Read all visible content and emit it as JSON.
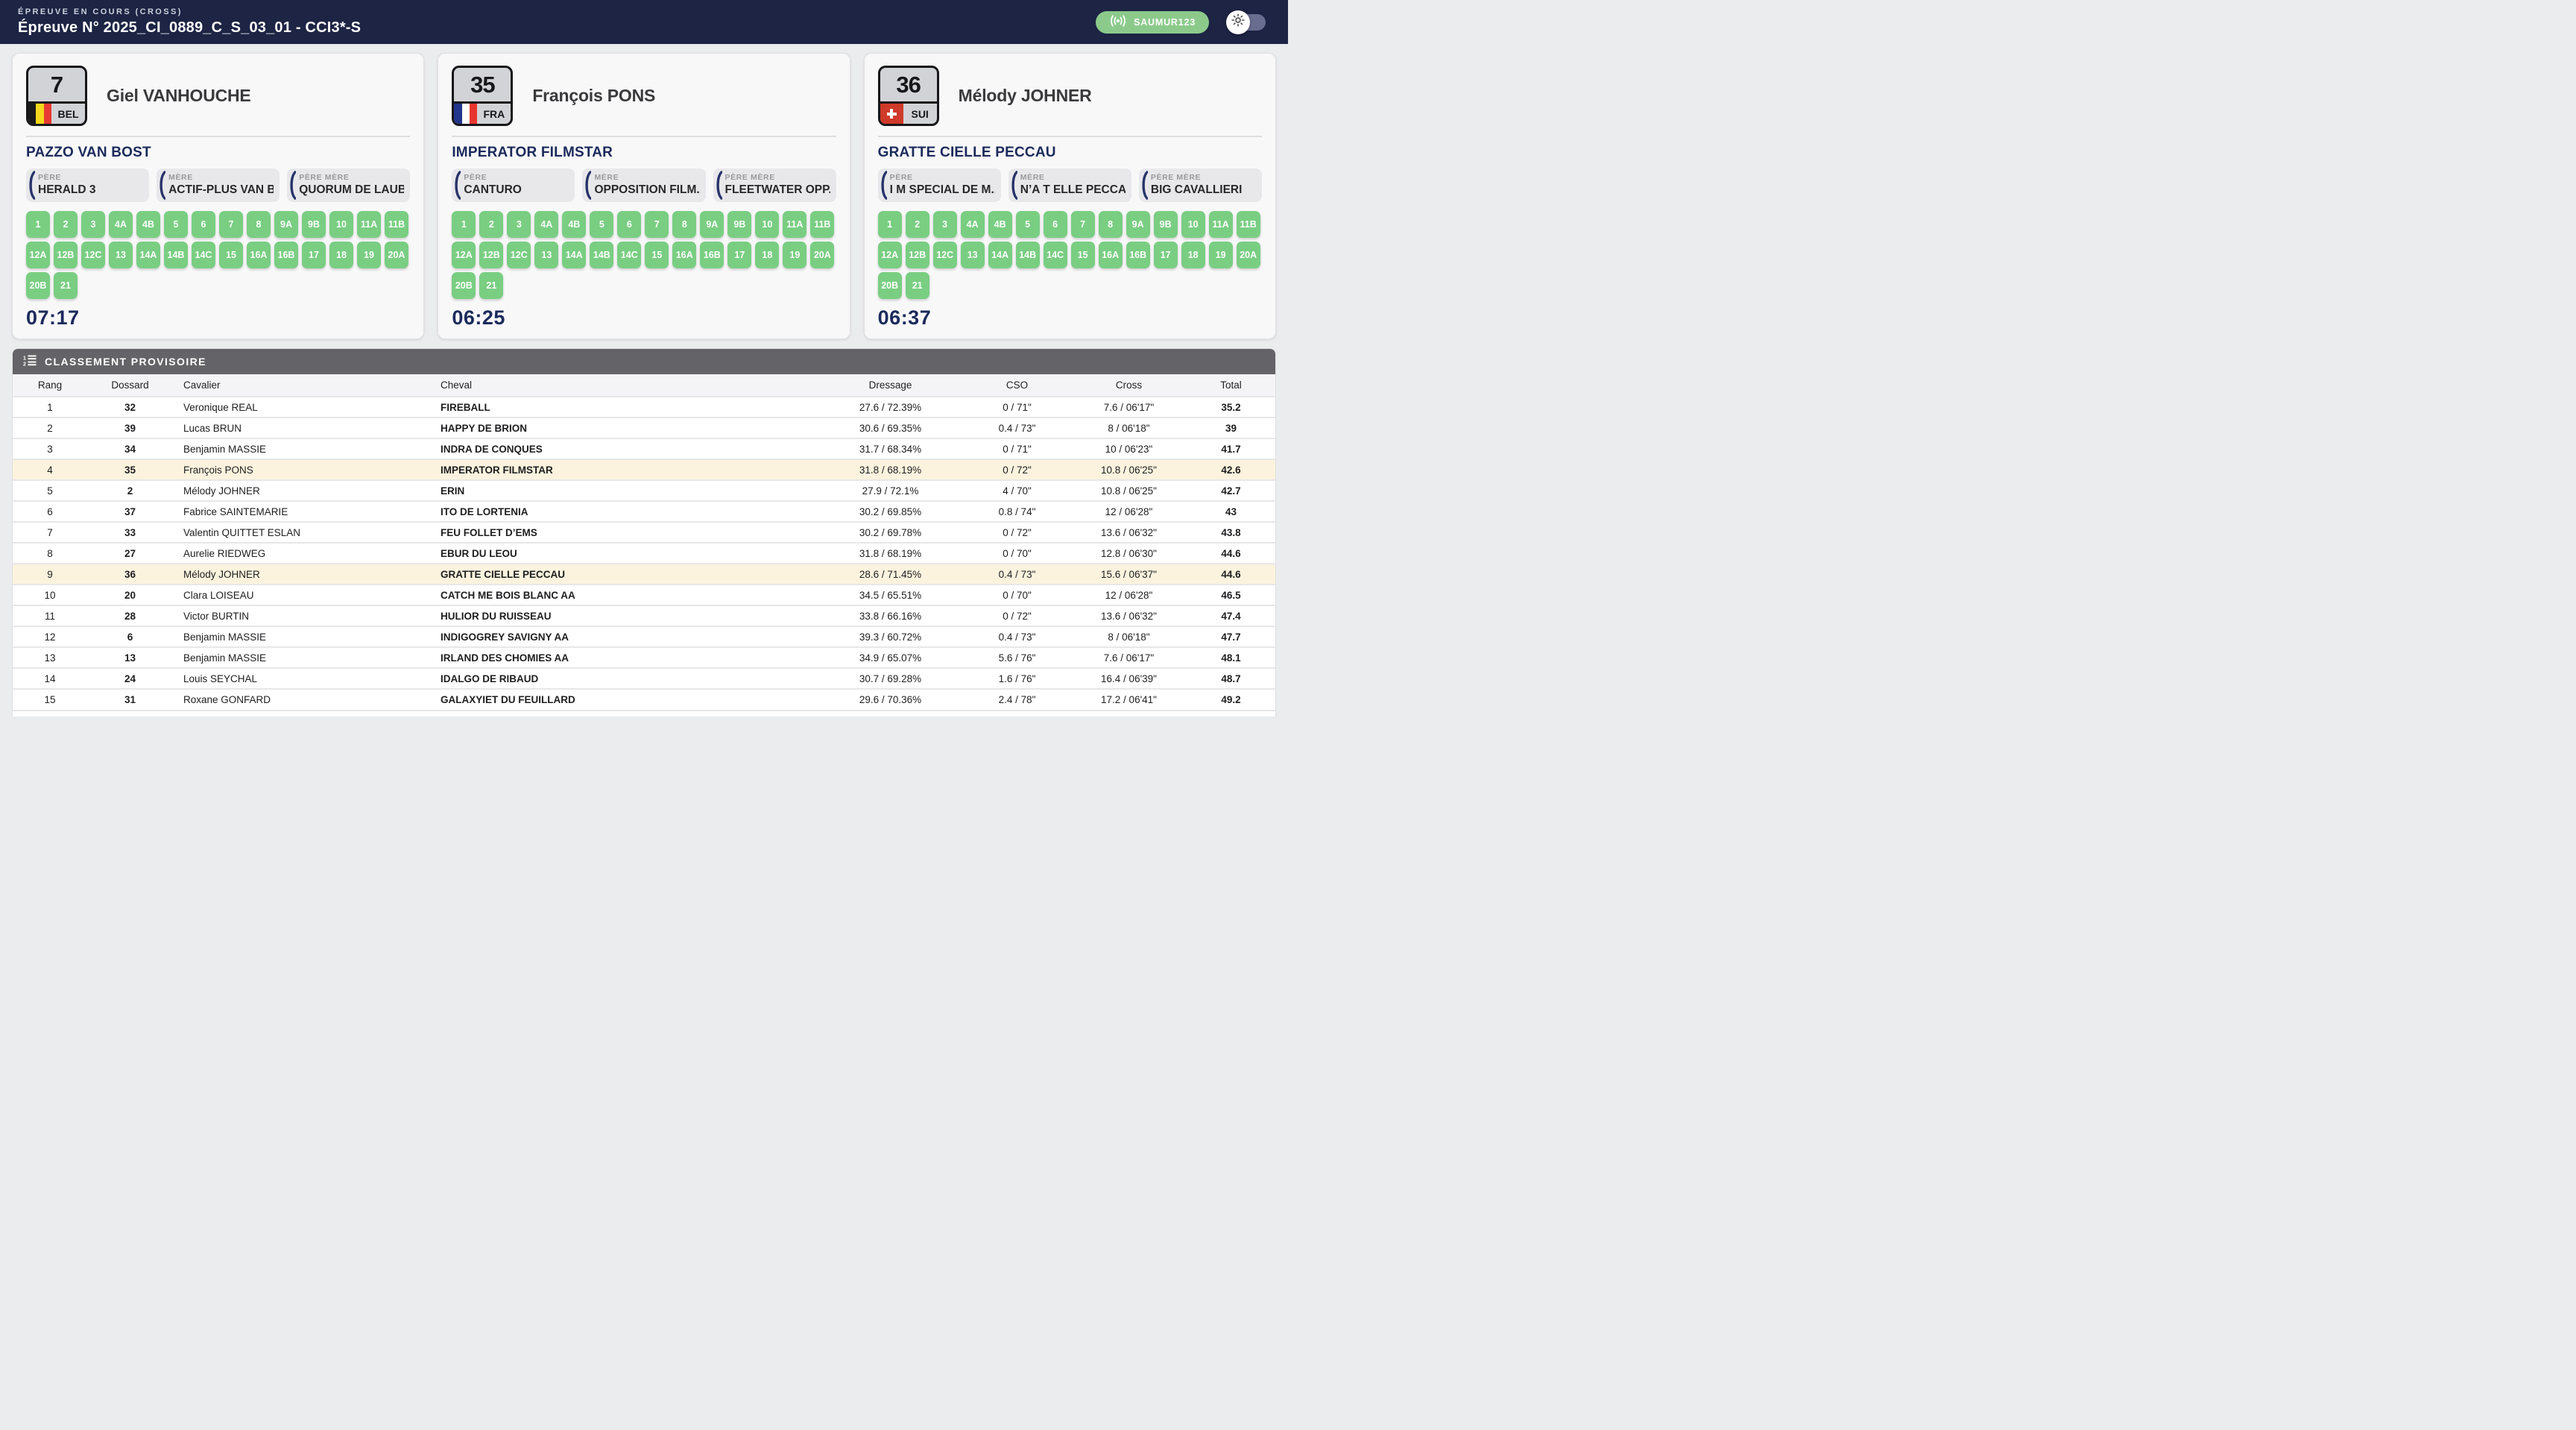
{
  "header": {
    "supertitle": "ÉPREUVE EN COURS (CROSS)",
    "title": "Épreuve N° 2025_CI_0889_C_S_03_01 - CCI3*-S",
    "badge": {
      "label": "SAUMUR123",
      "icon": "broadcast-icon"
    },
    "theme_toggle": {
      "state": "light",
      "icon": "sun-icon"
    }
  },
  "colors": {
    "header_navy": "#1d2444",
    "accent_navy": "#1b2a5b",
    "checkpoint_green": "#79ce82",
    "badge_green": "#8cca8b",
    "section_gray": "#646468",
    "highlight_row": "#fbf3de"
  },
  "checkpoints": [
    "1",
    "2",
    "3",
    "4A",
    "4B",
    "5",
    "6",
    "7",
    "8",
    "9A",
    "9B",
    "10",
    "11A",
    "11B",
    "12A",
    "12B",
    "12C",
    "13",
    "14A",
    "14B",
    "14C",
    "15",
    "16A",
    "16B",
    "17",
    "18",
    "19",
    "20A",
    "20B",
    "21"
  ],
  "flags": {
    "BEL": {
      "type": "vstripes",
      "colors": [
        "#1a1a1a",
        "#f5d81c",
        "#e83a32"
      ]
    },
    "FRA": {
      "type": "vstripes",
      "colors": [
        "#21368c",
        "#ffffff",
        "#e8362f"
      ]
    },
    "SUI": {
      "type": "swiss",
      "bg": "#cf3a2a",
      "cross": "#ffffff"
    }
  },
  "cards": [
    {
      "bib": "7",
      "country": "BEL",
      "rider": "Giel VANHOUCHE",
      "horse": "PAZZO VAN BOST",
      "pedigree": [
        {
          "label": "PÈRE",
          "value": "HERALD 3"
        },
        {
          "label": "MÈRE",
          "value": "ACTIF-PLUS VAN B..."
        },
        {
          "label": "PÈRE MÈRE",
          "value": "QUORUM DE LAUB..."
        }
      ],
      "time": "07:17"
    },
    {
      "bib": "35",
      "country": "FRA",
      "rider": "François PONS",
      "horse": "IMPERATOR FILMSTAR",
      "pedigree": [
        {
          "label": "PÈRE",
          "value": "CANTURO"
        },
        {
          "label": "MÈRE",
          "value": "OPPOSITION FILM..."
        },
        {
          "label": "PÈRE MÈRE",
          "value": "FLEETWATER OPP..."
        }
      ],
      "time": "06:25"
    },
    {
      "bib": "36",
      "country": "SUI",
      "rider": "Mélody JOHNER",
      "horse": "GRATTE CIELLE PECCAU",
      "pedigree": [
        {
          "label": "PÈRE",
          "value": "I M SPECIAL DE M..."
        },
        {
          "label": "MÈRE",
          "value": "N’A T ELLE PECCAU"
        },
        {
          "label": "PÈRE MÈRE",
          "value": "BIG CAVALLIERI"
        }
      ],
      "time": "06:37"
    }
  ],
  "table": {
    "section_title": "CLASSEMENT PROVISOIRE",
    "columns": [
      "Rang",
      "Dossard",
      "Cavalier",
      "Cheval",
      "Dressage",
      "CSO",
      "Cross",
      "Total"
    ],
    "rows": [
      {
        "rang": "1",
        "dossard": "32",
        "cavalier": "Veronique REAL",
        "cheval": "FIREBALL",
        "dressage": "27.6 / 72.39%",
        "cso": "0 / 71\"",
        "cross": "7.6 / 06'17\"",
        "total": "35.2",
        "highlight": false
      },
      {
        "rang": "2",
        "dossard": "39",
        "cavalier": "Lucas BRUN",
        "cheval": "HAPPY DE BRION",
        "dressage": "30.6 / 69.35%",
        "cso": "0.4 / 73\"",
        "cross": "8 / 06'18\"",
        "total": "39",
        "highlight": false
      },
      {
        "rang": "3",
        "dossard": "34",
        "cavalier": "Benjamin MASSIE",
        "cheval": "INDRA DE CONQUES",
        "dressage": "31.7 / 68.34%",
        "cso": "0 / 71\"",
        "cross": "10 / 06'23\"",
        "total": "41.7",
        "highlight": false
      },
      {
        "rang": "4",
        "dossard": "35",
        "cavalier": "François PONS",
        "cheval": "IMPERATOR FILMSTAR",
        "dressage": "31.8 / 68.19%",
        "cso": "0 / 72\"",
        "cross": "10.8 / 06'25\"",
        "total": "42.6",
        "highlight": true
      },
      {
        "rang": "5",
        "dossard": "2",
        "cavalier": "Mélody JOHNER",
        "cheval": "ERIN",
        "dressage": "27.9 / 72.1%",
        "cso": "4 / 70\"",
        "cross": "10.8 / 06'25\"",
        "total": "42.7",
        "highlight": false
      },
      {
        "rang": "6",
        "dossard": "37",
        "cavalier": "Fabrice SAINTEMARIE",
        "cheval": "ITO DE LORTENIA",
        "dressage": "30.2 / 69.85%",
        "cso": "0.8 / 74\"",
        "cross": "12 / 06'28\"",
        "total": "43",
        "highlight": false
      },
      {
        "rang": "7",
        "dossard": "33",
        "cavalier": "Valentin QUITTET ESLAN",
        "cheval": "FEU FOLLET D’EMS",
        "dressage": "30.2 / 69.78%",
        "cso": "0 / 72\"",
        "cross": "13.6 / 06'32\"",
        "total": "43.8",
        "highlight": false
      },
      {
        "rang": "8",
        "dossard": "27",
        "cavalier": "Aurelie RIEDWEG",
        "cheval": "EBUR DU LEOU",
        "dressage": "31.8 / 68.19%",
        "cso": "0 / 70\"",
        "cross": "12.8 / 06'30\"",
        "total": "44.6",
        "highlight": false
      },
      {
        "rang": "9",
        "dossard": "36",
        "cavalier": "Mélody JOHNER",
        "cheval": "GRATTE CIELLE PECCAU",
        "dressage": "28.6 / 71.45%",
        "cso": "0.4 / 73\"",
        "cross": "15.6 / 06'37\"",
        "total": "44.6",
        "highlight": true
      },
      {
        "rang": "10",
        "dossard": "20",
        "cavalier": "Clara LOISEAU",
        "cheval": "CATCH ME BOIS BLANC AA",
        "dressage": "34.5 / 65.51%",
        "cso": "0 / 70\"",
        "cross": "12 / 06'28\"",
        "total": "46.5",
        "highlight": false
      },
      {
        "rang": "11",
        "dossard": "28",
        "cavalier": "Victor BURTIN",
        "cheval": "HULIOR DU RUISSEAU",
        "dressage": "33.8 / 66.16%",
        "cso": "0 / 72\"",
        "cross": "13.6 / 06'32\"",
        "total": "47.4",
        "highlight": false
      },
      {
        "rang": "12",
        "dossard": "6",
        "cavalier": "Benjamin MASSIE",
        "cheval": "INDIGOGREY SAVIGNY AA",
        "dressage": "39.3 / 60.72%",
        "cso": "0.4 / 73\"",
        "cross": "8 / 06'18\"",
        "total": "47.7",
        "highlight": false
      },
      {
        "rang": "13",
        "dossard": "13",
        "cavalier": "Benjamin MASSIE",
        "cheval": "IRLAND DES CHOMIES AA",
        "dressage": "34.9 / 65.07%",
        "cso": "5.6 / 76\"",
        "cross": "7.6 / 06'17\"",
        "total": "48.1",
        "highlight": false
      },
      {
        "rang": "14",
        "dossard": "24",
        "cavalier": "Louis SEYCHAL",
        "cheval": "IDALGO DE RIBAUD",
        "dressage": "30.7 / 69.28%",
        "cso": "1.6 / 76\"",
        "cross": "16.4 / 06'39\"",
        "total": "48.7",
        "highlight": false
      },
      {
        "rang": "15",
        "dossard": "31",
        "cavalier": "Roxane GONFARD",
        "cheval": "GALAXYIET DU FEUILLARD",
        "dressage": "29.6 / 70.36%",
        "cso": "2.4 / 78\"",
        "cross": "17.2 / 06'41\"",
        "total": "49.2",
        "highlight": false
      }
    ]
  }
}
